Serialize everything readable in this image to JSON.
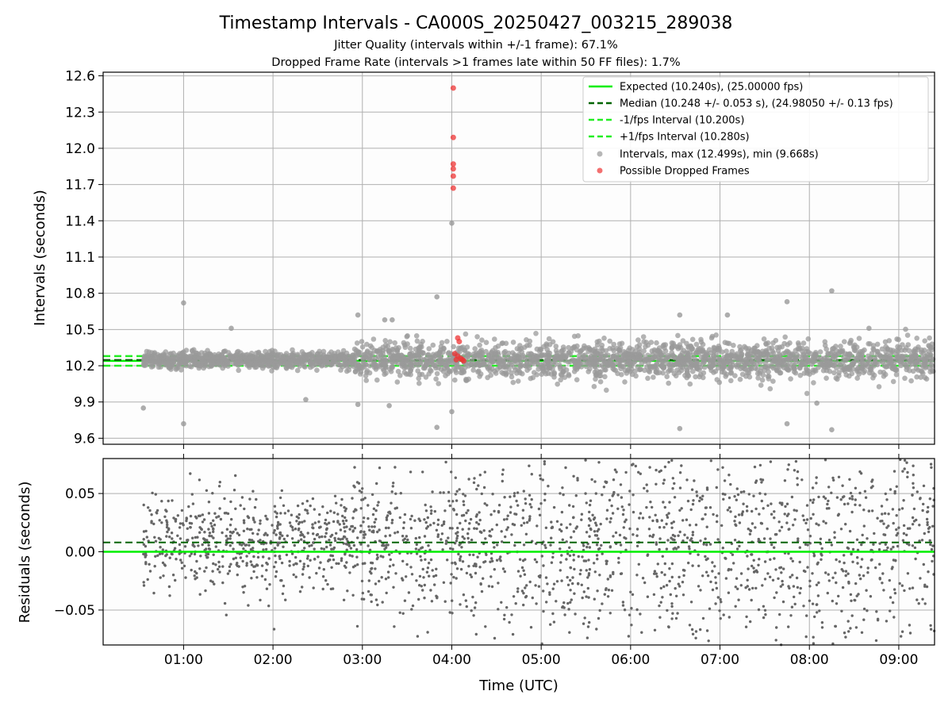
{
  "figure": {
    "title": "Timestamp Intervals - CA000S_20250427_003215_289038",
    "subtitle1": "Jitter Quality (intervals within +/-1 frame): 67.1%",
    "subtitle2": "Dropped Frame Rate (intervals >1 frames late within 50 FF files): 1.7%"
  },
  "colors": {
    "expected": "#00ee00",
    "median": "#006400",
    "fps_band": "#22ee22",
    "intervals": "#999999",
    "dropped": "#ee3333",
    "residuals": "#666666",
    "grid": "#b0b0b0"
  },
  "chart_data": [
    {
      "type": "scatter",
      "ylabel": "Intervals (seconds)",
      "ylim": [
        9.55,
        12.63
      ],
      "y_ticks": [
        "9.6",
        "9.9",
        "10.2",
        "10.5",
        "10.8",
        "11.1",
        "11.4",
        "11.7",
        "12.0",
        "12.3",
        "12.6"
      ],
      "y_tick_values": [
        9.6,
        9.9,
        10.2,
        10.5,
        10.8,
        11.1,
        11.4,
        11.7,
        12.0,
        12.3,
        12.6
      ],
      "xlim": [
        "00:06",
        "09:24"
      ],
      "x_tick_values": [
        "01:00",
        "02:00",
        "03:00",
        "04:00",
        "05:00",
        "06:00",
        "07:00",
        "08:00",
        "09:00"
      ],
      "grid": true,
      "legend_position": "top-right",
      "reference_lines": {
        "expected": 10.24,
        "median": 10.248,
        "minus_fps": 10.2,
        "plus_fps": 10.28
      },
      "legend": [
        "Expected (10.240s), (25.00000 fps)",
        "Median (10.248 +/- 0.053 s), (24.98050 +/- 0.13 fps)",
        "-1/fps Interval (10.200s)",
        "+1/fps Interval (10.280s)",
        "Intervals, max (12.499s), min (9.668s)",
        "Possible Dropped Frames"
      ],
      "outliers": [
        {
          "x": "00:33",
          "y": 9.85
        },
        {
          "x": "01:00",
          "y": 10.72
        },
        {
          "x": "01:00",
          "y": 9.72
        },
        {
          "x": "01:32",
          "y": 10.51
        },
        {
          "x": "02:22",
          "y": 9.92
        },
        {
          "x": "02:57",
          "y": 10.62
        },
        {
          "x": "02:57",
          "y": 9.88
        },
        {
          "x": "03:15",
          "y": 10.58
        },
        {
          "x": "03:20",
          "y": 10.58
        },
        {
          "x": "03:18",
          "y": 9.87
        },
        {
          "x": "03:50",
          "y": 10.77
        },
        {
          "x": "03:50",
          "y": 9.69
        },
        {
          "x": "04:00",
          "y": 11.38
        },
        {
          "x": "04:00",
          "y": 9.82
        },
        {
          "x": "06:33",
          "y": 10.62
        },
        {
          "x": "06:33",
          "y": 9.68
        },
        {
          "x": "07:05",
          "y": 10.62
        },
        {
          "x": "07:45",
          "y": 10.73
        },
        {
          "x": "07:45",
          "y": 9.72
        },
        {
          "x": "08:05",
          "y": 9.89
        },
        {
          "x": "08:15",
          "y": 10.82
        },
        {
          "x": "08:15",
          "y": 9.67
        },
        {
          "x": "08:40",
          "y": 10.51
        }
      ],
      "dropped_frames": [
        {
          "x": "04:01",
          "y": 12.499
        },
        {
          "x": "04:01",
          "y": 12.09
        },
        {
          "x": "04:01",
          "y": 11.87
        },
        {
          "x": "04:01",
          "y": 11.83
        },
        {
          "x": "04:01",
          "y": 11.77
        },
        {
          "x": "04:01",
          "y": 11.67
        },
        {
          "x": "04:04",
          "y": 10.43
        },
        {
          "x": "04:05",
          "y": 10.4
        },
        {
          "x": "04:02",
          "y": 10.3
        },
        {
          "x": "04:04",
          "y": 10.28
        },
        {
          "x": "04:06",
          "y": 10.26
        },
        {
          "x": "04:03",
          "y": 10.25
        },
        {
          "x": "04:07",
          "y": 10.25
        },
        {
          "x": "04:08",
          "y": 10.24
        }
      ]
    },
    {
      "type": "scatter",
      "ylabel": "Residuals (seconds)",
      "xlabel": "Time (UTC)",
      "ylim": [
        -0.08,
        0.08
      ],
      "y_ticks": [
        "−0.05",
        "0.00",
        "0.05"
      ],
      "y_tick_values": [
        -0.05,
        0.0,
        0.05
      ],
      "xlim": [
        "00:06",
        "09:24"
      ],
      "x_ticks": [
        "01:00",
        "02:00",
        "03:00",
        "04:00",
        "05:00",
        "06:00",
        "07:00",
        "08:00",
        "09:00"
      ],
      "grid": true,
      "reference_lines": {
        "expected": 0.0,
        "median": 0.008
      }
    }
  ]
}
